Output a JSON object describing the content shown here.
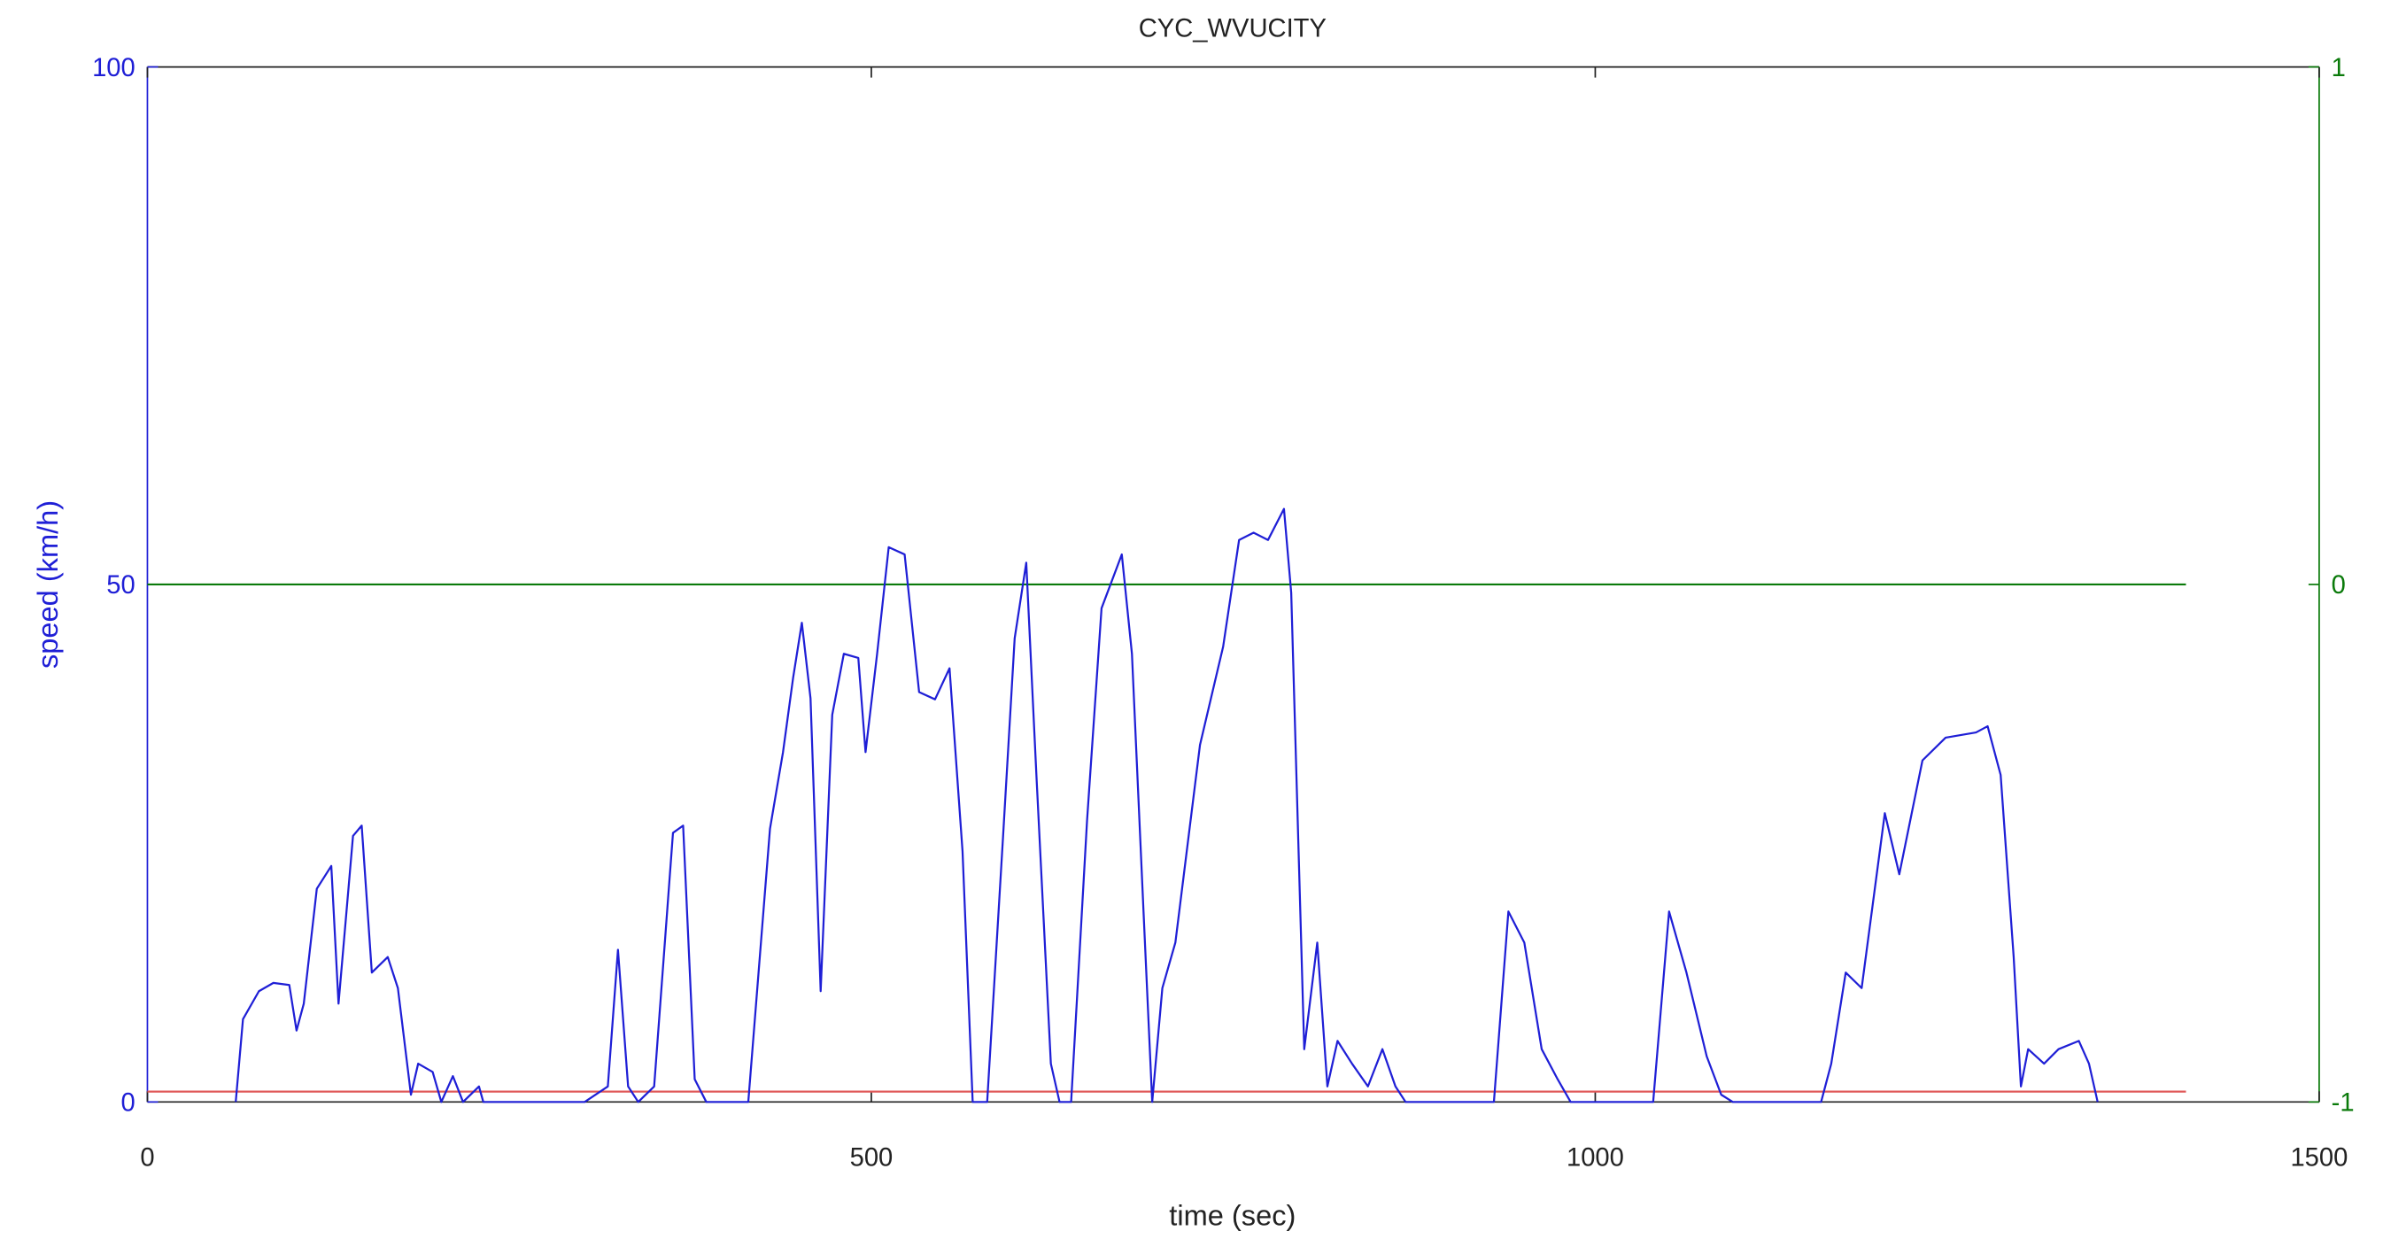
{
  "chart_data": {
    "type": "line",
    "title": "CYC_WVUCITY",
    "x_label": "time (sec)",
    "y_label": "speed (km/h)",
    "xlim": [
      0,
      1500
    ],
    "xticks": [
      0,
      500,
      1000,
      1500
    ],
    "ylim": [
      0,
      100
    ],
    "yticks": [
      0,
      50,
      100
    ],
    "y2lim": [
      -1,
      1
    ],
    "y2ticks": [
      -1,
      0,
      1
    ],
    "y_color": "#1f1fd6",
    "y2_color": "#0a7a0a",
    "series": [
      {
        "color": "#1f1fd6",
        "axis": "y",
        "x": [
          61,
          66,
          77,
          87,
          98,
          103,
          108,
          117,
          127,
          132,
          142,
          148,
          155,
          166,
          173,
          182,
          187,
          197,
          203,
          211,
          218,
          229,
          232,
          292,
          302,
          318,
          325,
          332,
          339,
          350,
          363,
          370,
          378,
          386,
          415,
          430,
          439,
          446,
          452,
          458,
          465,
          473,
          481,
          491,
          496,
          504,
          512,
          523,
          533,
          544,
          554,
          563,
          570,
          580,
          591,
          599,
          607,
          614,
          624,
          630,
          638,
          649,
          659,
          673,
          680,
          688,
          694,
          701,
          710,
          727,
          743,
          754,
          764,
          774,
          785,
          790,
          799,
          808,
          815,
          822,
          832,
          843,
          853,
          862,
          869,
          930,
          940,
          951,
          963,
          974,
          983,
          1040,
          1051,
          1063,
          1077,
          1087,
          1095,
          1156,
          1163,
          1173,
          1184,
          1200,
          1210,
          1226,
          1242,
          1263,
          1271,
          1280,
          1289,
          1294,
          1299,
          1310,
          1320,
          1334,
          1341,
          1347
        ],
        "values": [
          0,
          8,
          10.7,
          11.5,
          11.3,
          6.9,
          9.5,
          20.6,
          22.8,
          9.5,
          25.7,
          26.7,
          12.5,
          14,
          11,
          0.7,
          3.7,
          2.9,
          0,
          2.5,
          0,
          1.5,
          0,
          0,
          0,
          1.5,
          14.7,
          1.5,
          0,
          1.5,
          26,
          26.7,
          2.2,
          0,
          0,
          26.4,
          33.8,
          41,
          46.3,
          39,
          10.7,
          37.4,
          43.3,
          42.9,
          33.8,
          43.3,
          53.6,
          52.9,
          39.6,
          38.9,
          41.9,
          24.2,
          0,
          0,
          25.7,
          44.8,
          52.1,
          31.6,
          3.7,
          0,
          0,
          27.2,
          47.7,
          52.9,
          43.3,
          18.4,
          0,
          11,
          15.4,
          34.5,
          44,
          54.3,
          55,
          54.3,
          57.3,
          49.2,
          5.1,
          15.4,
          1.5,
          5.9,
          3.7,
          1.5,
          5.1,
          1.5,
          0,
          0,
          18.4,
          15.4,
          5.1,
          2.2,
          0,
          0,
          18.4,
          12.5,
          4.4,
          0.7,
          0,
          0,
          3.7,
          12.5,
          11,
          27.9,
          22,
          33,
          35.2,
          35.7,
          36.3,
          31.6,
          14,
          1.5,
          5.1,
          3.7,
          5.1,
          5.9,
          3.7,
          0
        ]
      },
      {
        "color": "#e05a5a",
        "axis": "y",
        "x": [
          0,
          1408
        ],
        "values": [
          1,
          1
        ]
      },
      {
        "color": "#0a7a0a",
        "axis": "y2",
        "x": [
          0,
          1408
        ],
        "values": [
          0,
          0
        ]
      }
    ]
  }
}
